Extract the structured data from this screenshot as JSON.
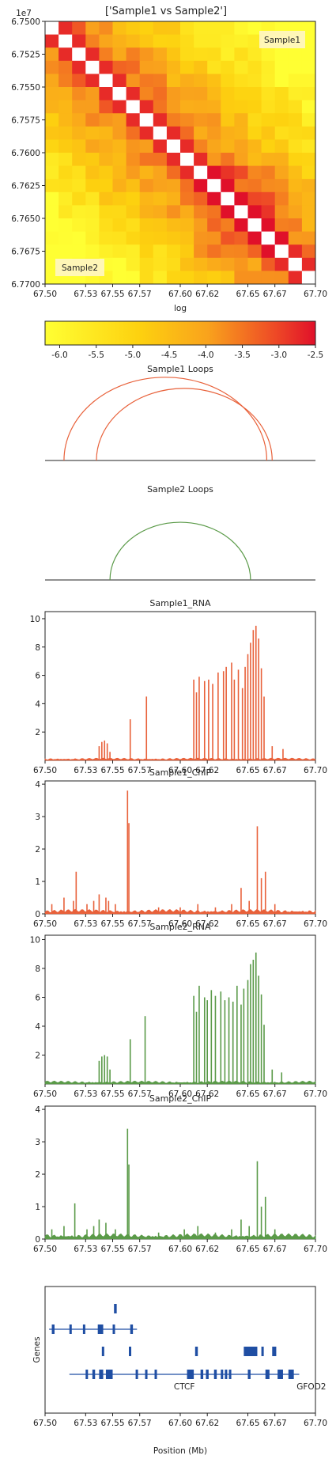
{
  "chart_data": [
    {
      "id": "contact_map",
      "type": "heatmap",
      "title": "['Sample1 vs Sample2']",
      "offset_label": "1e7",
      "xlabel": "log",
      "x_ticks": [
        "67.50",
        "67.53",
        "67.55",
        "67.57",
        "67.60",
        "67.62",
        "67.65",
        "67.67",
        "67.70"
      ],
      "y_ticks": [
        "6.7500",
        "6.7525",
        "6.7550",
        "6.7575",
        "6.7600",
        "6.7625",
        "6.7650",
        "6.7675",
        "6.7700"
      ],
      "upper_label": "Sample1",
      "lower_label": "Sample2",
      "grid_size": 20,
      "color_range": [
        -6.2,
        -2.5
      ]
    },
    {
      "id": "colorbar",
      "type": "colorbar",
      "ticks": [
        "-6.0",
        "-5.5",
        "-5.0",
        "-4.5",
        "-4.0",
        "-3.5",
        "-3.0",
        "-2.5"
      ],
      "tick_values": [
        -6.0,
        -5.5,
        -5.0,
        -4.5,
        -4.0,
        -3.5,
        -3.0,
        -2.5
      ],
      "range": [
        -6.2,
        -2.5
      ]
    },
    {
      "id": "sample1_loops",
      "type": "arcs",
      "title": "Sample1 Loops",
      "color": "#e8613a",
      "arcs": [
        [
          67.514,
          67.664
        ],
        [
          67.538,
          67.668
        ]
      ],
      "xlim": [
        67.5,
        67.7
      ]
    },
    {
      "id": "sample2_loops",
      "type": "arcs",
      "title": "Sample2 Loops",
      "color": "#5a9a48",
      "arcs": [
        [
          67.548,
          67.652
        ]
      ],
      "xlim": [
        67.5,
        67.7
      ]
    },
    {
      "id": "sample1_rna",
      "type": "area",
      "title": "Sample1_RNA",
      "color": "#e8613a",
      "xlim": [
        67.5,
        67.7
      ],
      "ylim": [
        0,
        10.5
      ],
      "y_ticks": [
        "2",
        "4",
        "6",
        "8",
        "10"
      ],
      "y_tick_values": [
        2,
        4,
        6,
        8,
        10
      ],
      "x_ticks": [
        "67.50",
        "67.53",
        "67.55",
        "67.57",
        "67.60",
        "67.62",
        "67.65",
        "67.67",
        "67.70"
      ],
      "peaks": [
        [
          67.54,
          1.0
        ],
        [
          67.542,
          1.3
        ],
        [
          67.544,
          1.4
        ],
        [
          67.546,
          1.2
        ],
        [
          67.548,
          0.6
        ],
        [
          67.563,
          2.9
        ],
        [
          67.575,
          4.5
        ],
        [
          67.61,
          5.7
        ],
        [
          67.612,
          4.8
        ],
        [
          67.614,
          5.9
        ],
        [
          67.618,
          5.6
        ],
        [
          67.621,
          5.7
        ],
        [
          67.624,
          5.4
        ],
        [
          67.628,
          6.2
        ],
        [
          67.632,
          6.3
        ],
        [
          67.634,
          6.6
        ],
        [
          67.638,
          6.9
        ],
        [
          67.64,
          5.7
        ],
        [
          67.643,
          6.4
        ],
        [
          67.646,
          5.1
        ],
        [
          67.648,
          6.6
        ],
        [
          67.65,
          7.5
        ],
        [
          67.652,
          8.3
        ],
        [
          67.654,
          9.2
        ],
        [
          67.656,
          9.5
        ],
        [
          67.658,
          8.6
        ],
        [
          67.66,
          6.5
        ],
        [
          67.662,
          4.5
        ],
        [
          67.668,
          1.0
        ],
        [
          67.676,
          0.8
        ]
      ],
      "baseline": 0.12
    },
    {
      "id": "sample1_chip",
      "type": "area",
      "title": "Sample1_ChIP",
      "color": "#e8613a",
      "xlim": [
        67.5,
        67.7
      ],
      "ylim": [
        0,
        4.1
      ],
      "y_ticks": [
        "0",
        "1",
        "2",
        "3",
        "4"
      ],
      "y_tick_values": [
        0,
        1,
        2,
        3,
        4
      ],
      "x_ticks": [
        "67.50",
        "67.53",
        "67.55",
        "67.57",
        "67.60",
        "67.62",
        "67.65",
        "67.67",
        "67.70"
      ],
      "peaks": [
        [
          67.505,
          0.3
        ],
        [
          67.514,
          0.5
        ],
        [
          67.521,
          0.4
        ],
        [
          67.523,
          1.3
        ],
        [
          67.531,
          0.3
        ],
        [
          67.536,
          0.4
        ],
        [
          67.54,
          0.6
        ],
        [
          67.545,
          0.5
        ],
        [
          67.547,
          0.4
        ],
        [
          67.552,
          0.3
        ],
        [
          67.561,
          3.8
        ],
        [
          67.562,
          2.8
        ],
        [
          67.584,
          0.2
        ],
        [
          67.6,
          0.2
        ],
        [
          67.613,
          0.3
        ],
        [
          67.626,
          0.2
        ],
        [
          67.638,
          0.3
        ],
        [
          67.645,
          0.8
        ],
        [
          67.651,
          0.4
        ],
        [
          67.657,
          2.7
        ],
        [
          67.66,
          1.1
        ],
        [
          67.663,
          1.3
        ],
        [
          67.67,
          0.3
        ]
      ],
      "baseline": 0.1
    },
    {
      "id": "sample2_rna",
      "type": "area",
      "title": "Sample2_RNA",
      "color": "#5a9a48",
      "xlim": [
        67.5,
        67.7
      ],
      "ylim": [
        0,
        10.3
      ],
      "y_ticks": [
        "2",
        "4",
        "6",
        "8",
        "10"
      ],
      "y_tick_values": [
        2,
        4,
        6,
        8,
        10
      ],
      "x_ticks": [
        "67.50",
        "67.53",
        "67.55",
        "67.57",
        "67.60",
        "67.62",
        "67.65",
        "67.67",
        "67.70"
      ],
      "peaks": [
        [
          67.54,
          1.6
        ],
        [
          67.542,
          1.9
        ],
        [
          67.544,
          2.0
        ],
        [
          67.546,
          1.9
        ],
        [
          67.548,
          1.0
        ],
        [
          67.563,
          3.1
        ],
        [
          67.574,
          4.7
        ],
        [
          67.61,
          6.1
        ],
        [
          67.612,
          5.0
        ],
        [
          67.614,
          6.8
        ],
        [
          67.618,
          6.0
        ],
        [
          67.62,
          5.8
        ],
        [
          67.623,
          6.5
        ],
        [
          67.626,
          6.1
        ],
        [
          67.63,
          6.4
        ],
        [
          67.633,
          5.8
        ],
        [
          67.636,
          6.0
        ],
        [
          67.639,
          5.7
        ],
        [
          67.642,
          6.8
        ],
        [
          67.645,
          5.5
        ],
        [
          67.647,
          6.6
        ],
        [
          67.65,
          7.2
        ],
        [
          67.652,
          8.3
        ],
        [
          67.654,
          8.6
        ],
        [
          67.656,
          9.1
        ],
        [
          67.658,
          7.5
        ],
        [
          67.66,
          6.2
        ],
        [
          67.662,
          4.1
        ],
        [
          67.668,
          1.0
        ],
        [
          67.675,
          0.8
        ]
      ],
      "baseline": 0.15
    },
    {
      "id": "sample2_chip",
      "type": "area",
      "title": "Sample2_ChIP",
      "color": "#5a9a48",
      "xlim": [
        67.5,
        67.7
      ],
      "ylim": [
        0,
        4.1
      ],
      "y_ticks": [
        "0",
        "1",
        "2",
        "3",
        "4"
      ],
      "y_tick_values": [
        0,
        1,
        2,
        3,
        4
      ],
      "x_ticks": [
        "67.50",
        "67.53",
        "67.55",
        "67.57",
        "67.60",
        "67.62",
        "67.65",
        "67.67",
        "67.70"
      ],
      "peaks": [
        [
          67.505,
          0.3
        ],
        [
          67.514,
          0.4
        ],
        [
          67.522,
          1.1
        ],
        [
          67.531,
          0.3
        ],
        [
          67.536,
          0.4
        ],
        [
          67.54,
          0.6
        ],
        [
          67.545,
          0.5
        ],
        [
          67.552,
          0.3
        ],
        [
          67.561,
          3.4
        ],
        [
          67.562,
          2.3
        ],
        [
          67.584,
          0.2
        ],
        [
          67.603,
          0.3
        ],
        [
          67.613,
          0.4
        ],
        [
          67.626,
          0.2
        ],
        [
          67.638,
          0.3
        ],
        [
          67.645,
          0.6
        ],
        [
          67.651,
          0.4
        ],
        [
          67.657,
          2.4
        ],
        [
          67.66,
          1.0
        ],
        [
          67.663,
          1.3
        ],
        [
          67.67,
          0.3
        ]
      ],
      "baseline": 0.12
    },
    {
      "id": "genes",
      "type": "gene_track",
      "ylabel": "Genes",
      "xlabel": "Position (Mb)",
      "color": "#1f4ea3",
      "xlim": [
        67.5,
        67.7
      ],
      "x_ticks": [
        "67.50",
        "67.53",
        "67.55",
        "67.57",
        "67.60",
        "67.62",
        "67.65",
        "67.67",
        "67.70"
      ],
      "rows": [
        {
          "lines": [],
          "exons": [
            [
              67.551,
              67.553
            ]
          ]
        },
        {
          "lines": [
            [
              67.503,
              67.568
            ]
          ],
          "exons": [
            [
              67.505,
              67.507
            ],
            [
              67.518,
              67.519
            ],
            [
              67.528,
              67.529
            ],
            [
              67.539,
              67.543
            ],
            [
              67.55,
              67.551
            ],
            [
              67.563,
              67.565
            ]
          ]
        },
        {
          "lines": [],
          "exons": [
            [
              67.542,
              67.543
            ],
            [
              67.562,
              67.563
            ],
            [
              67.611,
              67.613
            ],
            [
              67.647,
              67.657
            ],
            [
              67.66,
              67.661
            ],
            [
              67.668,
              67.671
            ]
          ]
        },
        {
          "lines": [
            [
              67.518,
              67.688
            ]
          ],
          "exons": [
            [
              67.53,
              67.531
            ],
            [
              67.535,
              67.537
            ],
            [
              67.54,
              67.543
            ],
            [
              67.545,
              67.55
            ],
            [
              67.567,
              67.568
            ],
            [
              67.574,
              67.575
            ],
            [
              67.581,
              67.582
            ],
            [
              67.605,
              67.61
            ],
            [
              67.615,
              67.617
            ],
            [
              67.619,
              67.621
            ],
            [
              67.625,
              67.627
            ],
            [
              67.63,
              67.631
            ],
            [
              67.633,
              67.634
            ],
            [
              67.636,
              67.637
            ],
            [
              67.65,
              67.652
            ],
            [
              67.663,
              67.666
            ],
            [
              67.672,
              67.676
            ],
            [
              67.68,
              67.684
            ]
          ]
        }
      ],
      "labels": [
        {
          "text": "CTCF",
          "x": 67.603
        },
        {
          "text": "GFOD2",
          "x": 67.697
        }
      ]
    }
  ]
}
